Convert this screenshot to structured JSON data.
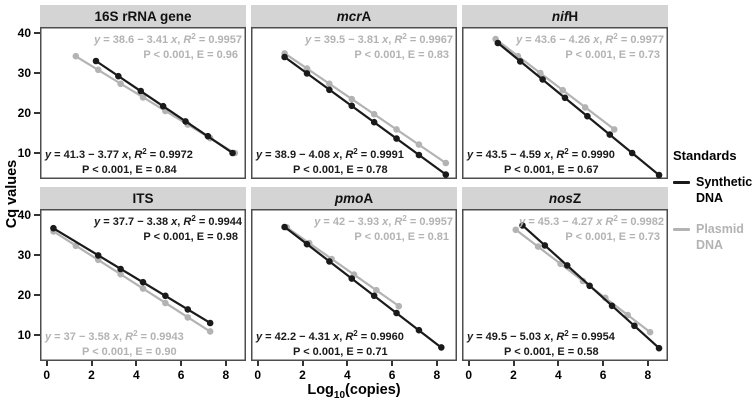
{
  "figure": {
    "ylabel": "Cq values",
    "xlabel": {
      "pre": "Log",
      "sub": "10",
      "post": "(copies)"
    }
  },
  "legend": {
    "title": "Standards",
    "items": [
      {
        "key": "synthetic",
        "label": "Synthetic\nDNA"
      },
      {
        "key": "plasmid",
        "label": "Plasmid\nDNA"
      }
    ]
  },
  "colors": {
    "synthetic": "#1a1a1a",
    "plasmid": "#b3b3b3",
    "strip_bg": "#d4d4d4",
    "panel_border": "#4d4d4d"
  },
  "axes": {
    "xticks": [
      0,
      2,
      4,
      6,
      8
    ],
    "yticks": [
      10,
      20,
      30,
      40
    ],
    "xlim": [
      -0.3,
      8.9
    ],
    "ylim": [
      3.5,
      41.5
    ]
  },
  "chart_data": [
    {
      "type": "scatter",
      "slug": "16s-rrna-gene",
      "title": "16S rRNA gene",
      "title_parts": [
        {
          "text": "16S rRNA gene",
          "italic": false
        }
      ],
      "xlabel": "Log10(copies)",
      "ylabel": "Cq values",
      "series": [
        {
          "name": "Plasmid DNA",
          "key": "plasmid",
          "intercept": "38.6",
          "slope": "3.41",
          "r2": "0.9957",
          "equation": "y = 38.6 − 3.41 x, R² = 0.9957",
          "stats": "P < 0.001, E = 0.96",
          "annotation_pos": "top-right",
          "x": [
            1.3,
            2.3,
            3.3,
            4.3,
            5.3,
            6.3,
            7.3,
            8.4
          ],
          "y": [
            34.2,
            30.8,
            27.3,
            23.9,
            20.5,
            17.1,
            13.7,
            10.0
          ]
        },
        {
          "name": "Synthetic DNA",
          "key": "synthetic",
          "intercept": "41.3",
          "slope": "3.77",
          "r2": "0.9972",
          "equation": "y = 41.3 − 3.77 x, R² = 0.9972",
          "stats": "P < 0.001, E = 0.84",
          "annotation_pos": "bottom-left",
          "x": [
            2.2,
            3.2,
            4.2,
            5.2,
            6.2,
            7.2,
            8.3
          ],
          "y": [
            33.0,
            29.2,
            25.5,
            21.7,
            17.9,
            14.2,
            10.0
          ]
        }
      ]
    },
    {
      "type": "scatter",
      "slug": "mcra",
      "title": "mcrA",
      "title_parts": [
        {
          "text": "mcr",
          "italic": true
        },
        {
          "text": "A",
          "italic": false
        }
      ],
      "xlabel": "Log10(copies)",
      "ylabel": "Cq values",
      "series": [
        {
          "name": "Plasmid DNA",
          "key": "plasmid",
          "intercept": "39.5",
          "slope": "3.81",
          "r2": "0.9967",
          "equation": "y = 39.5 − 3.81 x, R² = 0.9967",
          "stats": "P < 0.001, E = 0.83",
          "annotation_pos": "top-right",
          "x": [
            1.2,
            2.2,
            3.2,
            4.2,
            5.2,
            6.2,
            7.2,
            8.4
          ],
          "y": [
            34.9,
            31.1,
            27.3,
            23.5,
            19.7,
            15.9,
            12.1,
            7.5
          ]
        },
        {
          "name": "Synthetic DNA",
          "key": "synthetic",
          "intercept": "38.9",
          "slope": "4.08",
          "r2": "0.9991",
          "equation": "y = 38.9 − 4.08 x, R² = 0.9991",
          "stats": "P < 0.001, E = 0.78",
          "annotation_pos": "bottom-left",
          "x": [
            1.2,
            2.2,
            3.2,
            4.2,
            5.2,
            6.2,
            7.2,
            8.4
          ],
          "y": [
            34.0,
            29.9,
            25.8,
            21.8,
            17.7,
            13.6,
            9.5,
            4.6
          ]
        }
      ]
    },
    {
      "type": "scatter",
      "slug": "nifh",
      "title": "nifH",
      "title_parts": [
        {
          "text": "nif",
          "italic": true
        },
        {
          "text": "H",
          "italic": false
        }
      ],
      "xlabel": "Log10(copies)",
      "ylabel": "Cq values",
      "series": [
        {
          "name": "Plasmid DNA",
          "key": "plasmid",
          "intercept": "43.6",
          "slope": "4.26",
          "r2": "0.9977",
          "equation": "y = 43.6 − 4.26 x, R² = 0.9977",
          "stats": "P < 0.001, E = 0.73",
          "annotation_pos": "top-right",
          "x": [
            1.2,
            2.2,
            3.2,
            4.2,
            5.2,
            6.5
          ],
          "y": [
            38.5,
            34.2,
            30.0,
            25.7,
            21.4,
            15.9
          ]
        },
        {
          "name": "Synthetic DNA",
          "key": "synthetic",
          "intercept": "43.5",
          "slope": "4.59",
          "r2": "0.9990",
          "equation": "y = 43.5 − 4.59 x, R² = 0.9990",
          "stats": "P < 0.001, E = 0.67",
          "annotation_pos": "bottom-left",
          "x": [
            1.3,
            2.3,
            3.3,
            4.3,
            5.3,
            6.3,
            7.3,
            8.5
          ],
          "y": [
            37.5,
            32.9,
            28.4,
            23.8,
            19.2,
            14.6,
            10.0,
            4.5
          ]
        }
      ]
    },
    {
      "type": "scatter",
      "slug": "its",
      "title": "ITS",
      "title_parts": [
        {
          "text": "ITS",
          "italic": false
        }
      ],
      "xlabel": "Log10(copies)",
      "ylabel": "Cq values",
      "series": [
        {
          "name": "Plasmid DNA",
          "key": "plasmid",
          "intercept": "37",
          "slope": "3.58",
          "r2": "0.9943",
          "equation": "y = 37 − 3.58 x, R² = 0.9943",
          "stats": "P < 0.001, E = 0.90",
          "annotation_pos": "bottom-left",
          "x": [
            0.3,
            1.3,
            2.3,
            3.3,
            4.3,
            5.3,
            6.3,
            7.3
          ],
          "y": [
            35.9,
            32.3,
            28.8,
            25.2,
            21.6,
            18.0,
            14.4,
            10.9
          ]
        },
        {
          "name": "Synthetic DNA",
          "key": "synthetic",
          "intercept": "37.7",
          "slope": "3.38",
          "r2": "0.9944",
          "equation": "y = 37.7 − 3.38 x, R² = 0.9944",
          "stats": "P < 0.001, E = 0.98",
          "annotation_pos": "top-right",
          "x": [
            0.3,
            2.3,
            3.3,
            4.3,
            5.3,
            6.3,
            7.3
          ],
          "y": [
            36.7,
            29.9,
            26.5,
            23.2,
            19.8,
            16.4,
            13.0
          ]
        }
      ]
    },
    {
      "type": "scatter",
      "slug": "pmoa",
      "title": "pmoA",
      "title_parts": [
        {
          "text": "pmo",
          "italic": true
        },
        {
          "text": "A",
          "italic": false
        }
      ],
      "xlabel": "Log10(copies)",
      "ylabel": "Cq values",
      "series": [
        {
          "name": "Plasmid DNA",
          "key": "plasmid",
          "intercept": "42",
          "slope": "3.93",
          "r2": "0.9957",
          "equation": "y = 42 − 3.93 x, R² = 0.9957",
          "stats": "P < 0.001, E = 0.81",
          "annotation_pos": "top-right",
          "x": [
            1.3,
            2.3,
            3.3,
            4.3,
            5.3,
            6.3
          ],
          "y": [
            36.9,
            33.0,
            29.0,
            25.1,
            21.2,
            17.2
          ]
        },
        {
          "name": "Synthetic DNA",
          "key": "synthetic",
          "intercept": "42.2",
          "slope": "4.31",
          "r2": "0.9960",
          "equation": "y = 42.2 − 4.31 x, R² = 0.9960",
          "stats": "P < 0.001, E = 0.71",
          "annotation_pos": "bottom-left",
          "x": [
            1.2,
            2.2,
            3.2,
            4.2,
            5.2,
            6.2,
            7.2,
            8.2
          ],
          "y": [
            37.0,
            32.7,
            28.4,
            24.1,
            19.8,
            15.5,
            11.2,
            6.9
          ]
        }
      ]
    },
    {
      "type": "scatter",
      "slug": "nosz",
      "title": "nosZ",
      "title_parts": [
        {
          "text": "nos",
          "italic": true
        },
        {
          "text": "Z",
          "italic": false
        }
      ],
      "xlabel": "Log10(copies)",
      "ylabel": "Cq values",
      "series": [
        {
          "name": "Plasmid DNA",
          "key": "plasmid",
          "intercept": "45.3",
          "slope": "4.27",
          "r2": "0.9982",
          "equation": "y = 45.3 − 4.27 x R² = 0.9982",
          "stats": "P < 0.001, E = 0.73",
          "annotation_pos": "top-right",
          "comma": false,
          "x": [
            2.1,
            3.1,
            4.1,
            5.1,
            6.1,
            7.1,
            8.1
          ],
          "y": [
            36.3,
            32.1,
            27.8,
            23.5,
            19.3,
            15.0,
            10.7
          ]
        },
        {
          "name": "Synthetic DNA",
          "key": "synthetic",
          "intercept": "49.5",
          "slope": "5.03",
          "r2": "0.9954",
          "equation": "y = 49.5 − 5.03 x, R² = 0.9954",
          "stats": "P < 0.001, E = 0.58",
          "annotation_pos": "bottom-left",
          "x": [
            2.4,
            3.4,
            4.4,
            5.4,
            6.4,
            7.4,
            8.5
          ],
          "y": [
            37.4,
            32.4,
            27.4,
            22.3,
            17.3,
            12.3,
            6.7
          ]
        }
      ]
    }
  ]
}
